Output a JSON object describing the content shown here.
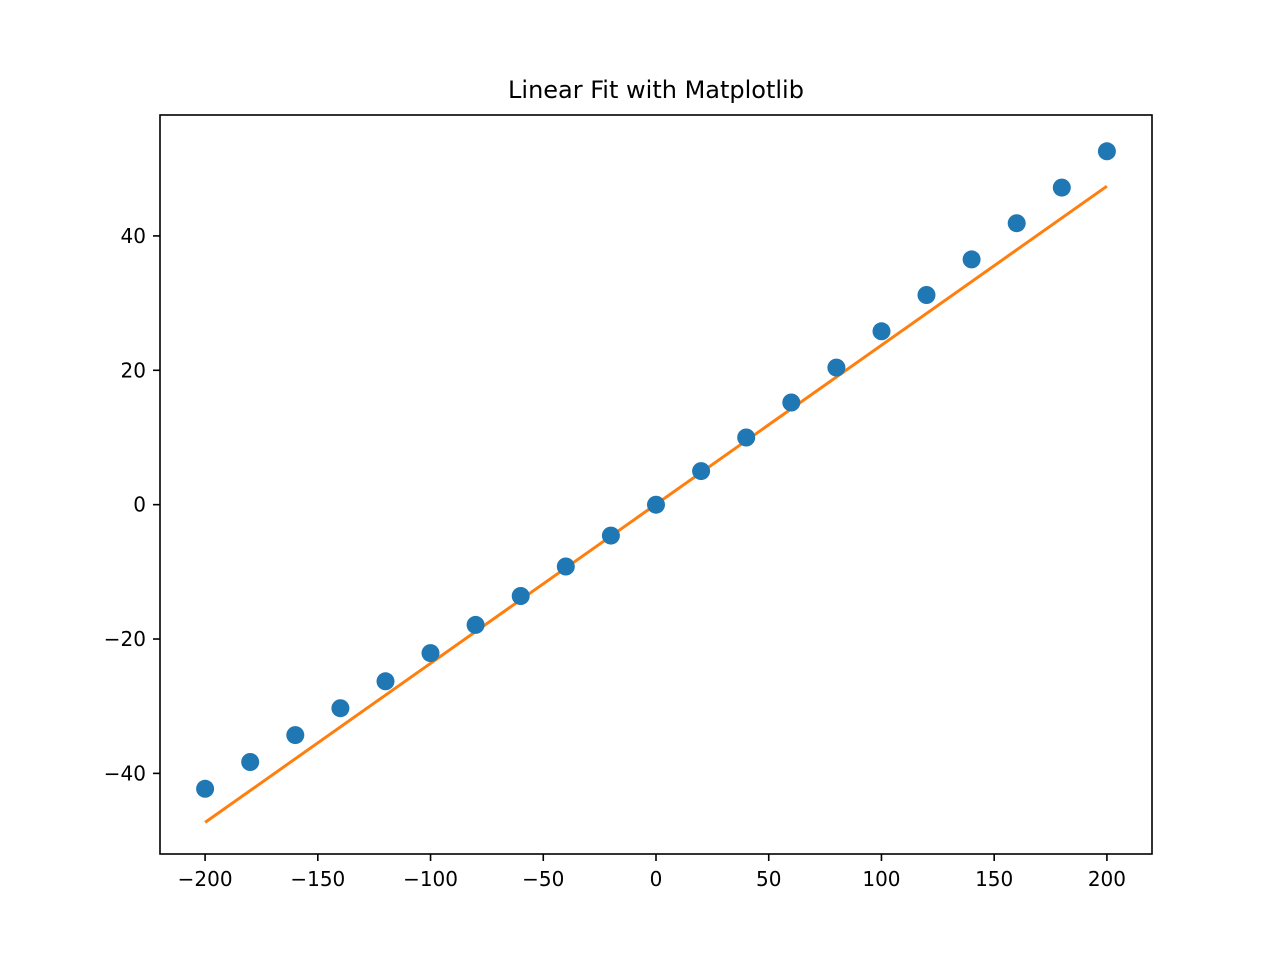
{
  "chart_data": {
    "type": "scatter",
    "title": "Linear Fit with Matplotlib",
    "xlabel": "",
    "ylabel": "",
    "xlim": [
      -220,
      220
    ],
    "ylim": [
      -52,
      58
    ],
    "grid": false,
    "legend": "none",
    "x_ticks": [
      -200,
      -150,
      -100,
      -50,
      0,
      50,
      100,
      150,
      200
    ],
    "x_tick_labels": [
      "−200",
      "−150",
      "−100",
      "−50",
      "0",
      "50",
      "100",
      "150",
      "200"
    ],
    "y_ticks": [
      -40,
      -20,
      0,
      20,
      40
    ],
    "y_tick_labels": [
      "−40",
      "−20",
      "0",
      "20",
      "40"
    ],
    "series": [
      {
        "kind": "scatter",
        "color": "#1f77b4",
        "x": [
          -200,
          -180,
          -160,
          -140,
          -120,
          -100,
          -80,
          -60,
          -40,
          -20,
          0,
          20,
          40,
          60,
          80,
          100,
          120,
          140,
          160,
          180,
          200
        ],
        "y": [
          -42.3,
          -38.3,
          -34.3,
          -30.3,
          -26.3,
          -22.1,
          -17.9,
          -13.6,
          -9.2,
          -4.6,
          0.0,
          5.0,
          10.0,
          15.2,
          20.4,
          25.8,
          31.2,
          36.5,
          41.9,
          47.2,
          52.6
        ]
      },
      {
        "kind": "line",
        "color": "#ff7f0e",
        "x": [
          -200,
          200
        ],
        "y": [
          -47.3,
          47.4
        ]
      }
    ]
  }
}
